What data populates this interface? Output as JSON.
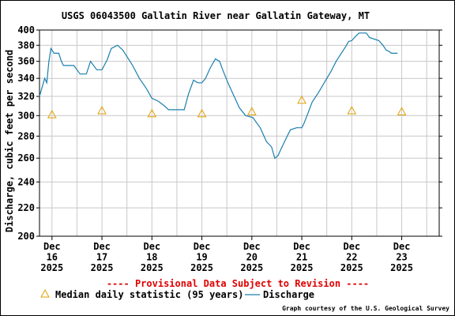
{
  "chart_data": {
    "type": "line",
    "title": "USGS 06043500 Gallatin River near Gallatin Gateway, MT",
    "ylabel": "Discharge, cubic feet per second",
    "ylim": [
      200,
      400
    ],
    "y_scale": "log",
    "y_ticks": [
      "200",
      "220",
      "240",
      "260",
      "280",
      "300",
      "320",
      "340",
      "360",
      "380",
      "400"
    ],
    "x_range": [
      "2025-12-15 18:00",
      "2025-12-23 18:00"
    ],
    "x_tick_labels": [
      {
        "date": "2025-12-16 00:00",
        "lines": [
          "Dec",
          "16",
          "2025"
        ]
      },
      {
        "date": "2025-12-17 00:00",
        "lines": [
          "Dec",
          "17",
          "2025"
        ]
      },
      {
        "date": "2025-12-18 00:00",
        "lines": [
          "Dec",
          "18",
          "2025"
        ]
      },
      {
        "date": "2025-12-19 00:00",
        "lines": [
          "Dec",
          "19",
          "2025"
        ]
      },
      {
        "date": "2025-12-20 00:00",
        "lines": [
          "Dec",
          "20",
          "2025"
        ]
      },
      {
        "date": "2025-12-21 00:00",
        "lines": [
          "Dec",
          "21",
          "2025"
        ]
      },
      {
        "date": "2025-12-22 00:00",
        "lines": [
          "Dec",
          "22",
          "2025"
        ]
      },
      {
        "date": "2025-12-23 00:00",
        "lines": [
          "Dec",
          "23",
          "2025"
        ]
      }
    ],
    "grid": true,
    "series": [
      {
        "name": "Discharge",
        "color": "#1a7fad",
        "points": [
          [
            "2025-12-15 18:00",
            320
          ],
          [
            "2025-12-15 19:15",
            330
          ],
          [
            "2025-12-15 20:30",
            340
          ],
          [
            "2025-12-15 21:30",
            335
          ],
          [
            "2025-12-15 22:30",
            360
          ],
          [
            "2025-12-15 23:30",
            376
          ],
          [
            "2025-12-16 00:30",
            372
          ],
          [
            "2025-12-16 01:00",
            370
          ],
          [
            "2025-12-16 03:15",
            370
          ],
          [
            "2025-12-16 04:30",
            360
          ],
          [
            "2025-12-16 05:30",
            355
          ],
          [
            "2025-12-16 10:30",
            355
          ],
          [
            "2025-12-16 12:00",
            350
          ],
          [
            "2025-12-16 13:30",
            345
          ],
          [
            "2025-12-16 16:30",
            345
          ],
          [
            "2025-12-16 18:30",
            360
          ],
          [
            "2025-12-16 21:30",
            350
          ],
          [
            "2025-12-17 00:00",
            350
          ],
          [
            "2025-12-17 02:30",
            362
          ],
          [
            "2025-12-17 04:30",
            376
          ],
          [
            "2025-12-17 07:30",
            380
          ],
          [
            "2025-12-17 10:00",
            374
          ],
          [
            "2025-12-17 14:30",
            356
          ],
          [
            "2025-12-17 18:00",
            340
          ],
          [
            "2025-12-17 21:30",
            328
          ],
          [
            "2025-12-18 00:00",
            318
          ],
          [
            "2025-12-18 03:00",
            315
          ],
          [
            "2025-12-18 06:00",
            310
          ],
          [
            "2025-12-18 08:00",
            306
          ],
          [
            "2025-12-18 15:30",
            306
          ],
          [
            "2025-12-18 17:30",
            322
          ],
          [
            "2025-12-18 20:00",
            338
          ],
          [
            "2025-12-18 22:00",
            335
          ],
          [
            "2025-12-19 00:00",
            335
          ],
          [
            "2025-12-19 01:45",
            340
          ],
          [
            "2025-12-19 04:00",
            352
          ],
          [
            "2025-12-19 06:30",
            363
          ],
          [
            "2025-12-19 08:30",
            360
          ],
          [
            "2025-12-19 10:00",
            350
          ],
          [
            "2025-12-19 12:30",
            335
          ],
          [
            "2025-12-19 15:30",
            320
          ],
          [
            "2025-12-19 18:00",
            308
          ],
          [
            "2025-12-19 21:00",
            300
          ],
          [
            "2025-12-20 00:30",
            298
          ],
          [
            "2025-12-20 04:00",
            288
          ],
          [
            "2025-12-20 07:00",
            275
          ],
          [
            "2025-12-20 09:30",
            270
          ],
          [
            "2025-12-20 11:00",
            260
          ],
          [
            "2025-12-20 12:30",
            262
          ],
          [
            "2025-12-20 14:00",
            268
          ],
          [
            "2025-12-20 16:30",
            278
          ],
          [
            "2025-12-20 18:30",
            286
          ],
          [
            "2025-12-20 21:30",
            288
          ],
          [
            "2025-12-21 00:00",
            288
          ],
          [
            "2025-12-21 01:00",
            292
          ],
          [
            "2025-12-21 02:30",
            300
          ],
          [
            "2025-12-21 05:00",
            314
          ],
          [
            "2025-12-21 08:00",
            324
          ],
          [
            "2025-12-21 11:00",
            336
          ],
          [
            "2025-12-21 14:00",
            348
          ],
          [
            "2025-12-21 16:30",
            360
          ],
          [
            "2025-12-21 19:00",
            370
          ],
          [
            "2025-12-21 21:00",
            378
          ],
          [
            "2025-12-21 22:30",
            385
          ],
          [
            "2025-12-22 00:00",
            386
          ],
          [
            "2025-12-22 02:00",
            392
          ],
          [
            "2025-12-22 03:30",
            396
          ],
          [
            "2025-12-22 07:00",
            396
          ],
          [
            "2025-12-22 08:30",
            390
          ],
          [
            "2025-12-22 13:00",
            386
          ],
          [
            "2025-12-22 15:00",
            380
          ],
          [
            "2025-12-22 16:30",
            374
          ],
          [
            "2025-12-22 18:00",
            372
          ],
          [
            "2025-12-22 19:00",
            370
          ],
          [
            "2025-12-22 22:00",
            370
          ]
        ]
      },
      {
        "name": "Median daily statistic (95 years)",
        "color": "#e0a000",
        "marker": "triangle",
        "points": [
          [
            "2025-12-16 00:00",
            301
          ],
          [
            "2025-12-17 00:00",
            305
          ],
          [
            "2025-12-18 00:00",
            302
          ],
          [
            "2025-12-19 00:00",
            302
          ],
          [
            "2025-12-20 00:00",
            304
          ],
          [
            "2025-12-21 00:00",
            316
          ],
          [
            "2025-12-22 00:00",
            305
          ],
          [
            "2025-12-23 00:00",
            304
          ]
        ]
      }
    ],
    "legend": {
      "placement": "bottom-left",
      "entries": [
        {
          "label": "Median daily statistic (95 years)",
          "symbol": "triangle",
          "color": "#e0a000"
        },
        {
          "label": "Discharge",
          "symbol": "line",
          "color": "#1a7fad"
        }
      ]
    },
    "annotations": {
      "provisional": "---- Provisional Data Subject to Revision ----",
      "provisional_color": "#e00000",
      "credit": "Graph courtesy of the U.S. Geological Survey"
    },
    "colors": {
      "grid": "#c8c8c8",
      "axis": "#000000"
    }
  }
}
